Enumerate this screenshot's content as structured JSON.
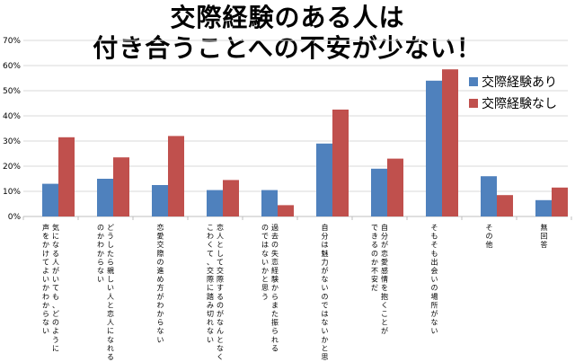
{
  "title": {
    "line1": "交際経験のある人は",
    "line2": "付き合うことへの不安が少ない！"
  },
  "colors": {
    "series1": "#4f81bd",
    "series2": "#c0504d",
    "grid": "#d9d9d9",
    "axis": "#bfbfbf"
  },
  "chart_data": {
    "type": "bar",
    "ylim": [
      0,
      70
    ],
    "yticks": [
      0,
      10,
      20,
      30,
      40,
      50,
      60,
      70
    ],
    "ytick_labels": [
      "0%",
      "10%",
      "20%",
      "30%",
      "40%",
      "50%",
      "60%",
      "70%"
    ],
    "grid": true,
    "legend_position": "right",
    "categories": [
      [
        "気になる人がいても、どのように",
        "声をかけてよいかわからない"
      ],
      [
        "どうしたら親しい人と恋人になれる",
        "のかわからない"
      ],
      [
        "恋愛交際の進め方がわからない"
      ],
      [
        "恋人として交際するのがなんとなく",
        "こわくて、交際に踏み切れない"
      ],
      [
        "過去の失恋経験からまた振られる",
        "のではないかと思う"
      ],
      [
        "自分は魅力がないのではないかと思う"
      ],
      [
        "自分が恋愛感情を抱くことが",
        "できるのか不安だ"
      ],
      [
        "そもそも出会いの場所がない"
      ],
      [
        "その他"
      ],
      [
        "無回答"
      ]
    ],
    "series": [
      {
        "name": "交際経験あり",
        "values": [
          13,
          15,
          12.5,
          10.5,
          10.5,
          29,
          19,
          54,
          16,
          6.5
        ]
      },
      {
        "name": "交際経験なし",
        "values": [
          31.5,
          23.5,
          32,
          14.5,
          4.5,
          42.5,
          23,
          58.5,
          8.5,
          11.5
        ]
      }
    ]
  }
}
